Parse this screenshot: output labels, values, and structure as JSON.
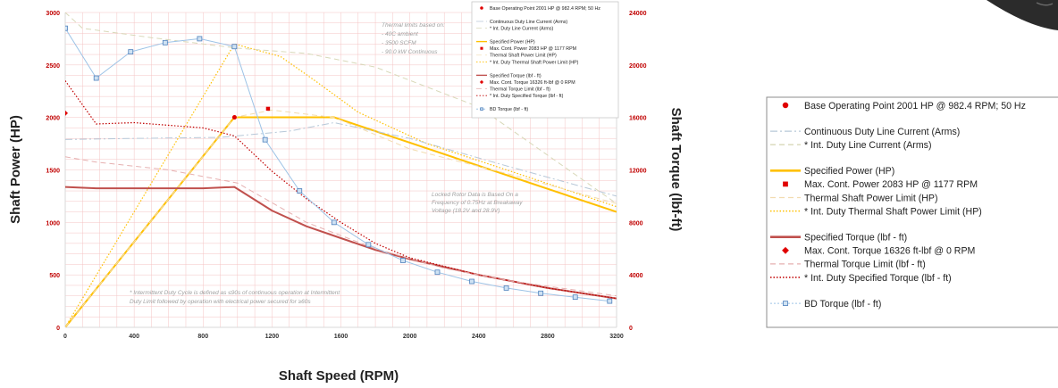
{
  "chart_data": {
    "type": "line",
    "xlabel": "Shaft Speed (RPM)",
    "ylabel_left": "Shaft Power (HP)",
    "ylabel_right": "Shaft Torque (lbf-ft)",
    "xlim": [
      0,
      3200
    ],
    "ylim_left": [
      0,
      3000
    ],
    "ylim_right": [
      0,
      24000
    ],
    "x_ticks": [
      "0",
      "400",
      "800",
      "1200",
      "1600",
      "2000",
      "2400",
      "2800",
      "3200"
    ],
    "y_left_ticks": [
      "0",
      "500",
      "1000",
      "1500",
      "2000",
      "2500",
      "3000"
    ],
    "y_right_ticks": [
      "0",
      "4000",
      "8000",
      "12000",
      "16000",
      "20000",
      "24000"
    ],
    "grid": true,
    "notes": {
      "thermal": [
        "Thermal limits based on:",
        "- 40C ambient",
        "- 3500 SCFM",
        "- 90.0 kW Continuous"
      ],
      "locked": [
        "Locked Rotor Data is Based On a",
        "Frequency of 0.75Hz at Breakaway",
        "Voltage (18.2V and 28.9V)"
      ],
      "intermittent": [
        "* Intermittent Duty Cycle is defined as ≤90s of continuous operation at Intermittent",
        "Duty Limit followed by operation with electrical power secured for ≥60s"
      ]
    },
    "legend": [
      "Base Operating Point 2001 HP @ 982.4 RPM; 50 Hz",
      "Continuous Duty Line Current (Arms)",
      "* Int. Duty Line Current (Arms)",
      "Specified Power (HP)",
      "Max. Cont. Power 2083 HP @ 1177 RPM",
      "Thermal Shaft Power Limit (HP)",
      "* Int. Duty Thermal Shaft Power Limit (HP)",
      "Specified Torque (lbf - ft)",
      "Max. Cont. Torque 16326 ft-lbf @ 0 RPM",
      "Thermal Torque Limit (lbf - ft)",
      "* Int. Duty Specified Torque (lbf - ft)",
      "BD Torque (lbf - ft)"
    ],
    "colors": {
      "grid": "#f4c4c4",
      "axis_left": "#c00000",
      "axis_right": "#c00000",
      "specified_power": "#ffc000",
      "specified_torque": "#c0504d",
      "int_power": "#ffc000",
      "int_torque": "#c00000",
      "thermal_power": "#f2dcb0",
      "thermal_torque": "#e6b0b0",
      "current_cont": "#b7c8d8",
      "current_int": "#d8d8b8",
      "bd_torque": "#9dc3e6",
      "base_point": "#e00000",
      "max_power": "#e00000",
      "max_torque": "#e00000"
    },
    "series": [
      {
        "name": "Specified Power (HP)",
        "axis": "left",
        "style": "solid-bold",
        "color_key": "specified_power",
        "x": [
          0,
          982,
          1560,
          3200
        ],
        "y": [
          0,
          2001,
          2001,
          1100
        ]
      },
      {
        "name": "* Int. Duty Thermal Shaft Power Limit (HP)",
        "axis": "left",
        "style": "dotted",
        "color_key": "int_power",
        "x": [
          0,
          982,
          1250,
          1450,
          1700,
          2100,
          2600,
          3200
        ],
        "y": [
          0,
          2700,
          2580,
          2350,
          2050,
          1750,
          1480,
          1150
        ]
      },
      {
        "name": "Thermal Shaft Power Limit (HP)",
        "axis": "left",
        "style": "dashed",
        "color_key": "thermal_power",
        "x": [
          0,
          982,
          1200,
          1560,
          2000,
          2600,
          3200
        ],
        "y": [
          0,
          2001,
          2070,
          2000,
          1700,
          1450,
          1180
        ]
      },
      {
        "name": "Continuous Duty Line Current (Arms)",
        "axis": "left",
        "style": "dashdot",
        "color_key": "current_cont",
        "x": [
          0,
          400,
          900,
          1300,
          1560,
          2000,
          2600,
          3200
        ],
        "y": [
          1790,
          1800,
          1810,
          1870,
          1950,
          1800,
          1520,
          1250
        ]
      },
      {
        "name": "* Int. Duty Line Current (Arms)",
        "axis": "left",
        "style": "dashed",
        "color_key": "current_int",
        "x": [
          0,
          100,
          500,
          1000,
          1400,
          1800,
          2400,
          3200
        ],
        "y": [
          3000,
          2850,
          2760,
          2660,
          2610,
          2480,
          2100,
          1180
        ]
      },
      {
        "name": "Specified Torque (lbf - ft)",
        "axis": "right",
        "style": "solid-bold",
        "color_key": "specified_torque",
        "x": [
          0,
          180,
          400,
          800,
          982,
          1200,
          1400,
          1600,
          1800,
          2000,
          2400,
          2800,
          3200
        ],
        "y": [
          10700,
          10600,
          10600,
          10600,
          10700,
          8900,
          7700,
          6800,
          5900,
          5200,
          4000,
          3000,
          2200
        ]
      },
      {
        "name": "* Int. Duty Specified Torque (lbf - ft)",
        "axis": "right",
        "style": "dotted",
        "color_key": "int_torque",
        "x": [
          0,
          180,
          400,
          800,
          982,
          1200,
          1400,
          1600,
          1800,
          2000,
          2400,
          2800,
          3200
        ],
        "y": [
          18800,
          15500,
          15600,
          15200,
          14600,
          11900,
          9800,
          8000,
          6400,
          5300,
          4000,
          3000,
          2200
        ]
      },
      {
        "name": "Thermal Torque Limit (lbf - ft)",
        "axis": "right",
        "style": "dashed",
        "color_key": "thermal_torque",
        "x": [
          0,
          180,
          600,
          1000,
          1400,
          1800,
          2200,
          2600,
          3200
        ],
        "y": [
          13000,
          12600,
          12000,
          11000,
          8000,
          6000,
          4500,
          3500,
          2400
        ]
      },
      {
        "name": "BD Torque (lbf - ft)",
        "axis": "right",
        "style": "solid-thin-markers",
        "color_key": "bd_torque",
        "x": [
          0,
          180,
          380,
          580,
          780,
          982,
          1160,
          1360,
          1560,
          1760,
          1960,
          2160,
          2360,
          2560,
          2760,
          2960,
          3160
        ],
        "y": [
          22800,
          19000,
          21000,
          21700,
          22000,
          21400,
          14300,
          10400,
          8000,
          6300,
          5100,
          4200,
          3500,
          3000,
          2600,
          2300,
          2000
        ]
      }
    ],
    "points": [
      {
        "name": "Base Operating Point 2001 HP @ 982.4 RPM; 50 Hz",
        "axis": "left",
        "x": 982.4,
        "y": 2001,
        "marker": "circle",
        "color_key": "base_point"
      },
      {
        "name": "Max. Cont. Power 2083 HP @ 1177 RPM",
        "axis": "left",
        "x": 1177,
        "y": 2083,
        "marker": "square",
        "color_key": "max_power"
      },
      {
        "name": "Max. Cont. Torque 16326 ft-lbf @ 0 RPM",
        "axis": "right",
        "x": 0,
        "y": 16326,
        "marker": "diamond",
        "color_key": "max_torque"
      }
    ]
  }
}
